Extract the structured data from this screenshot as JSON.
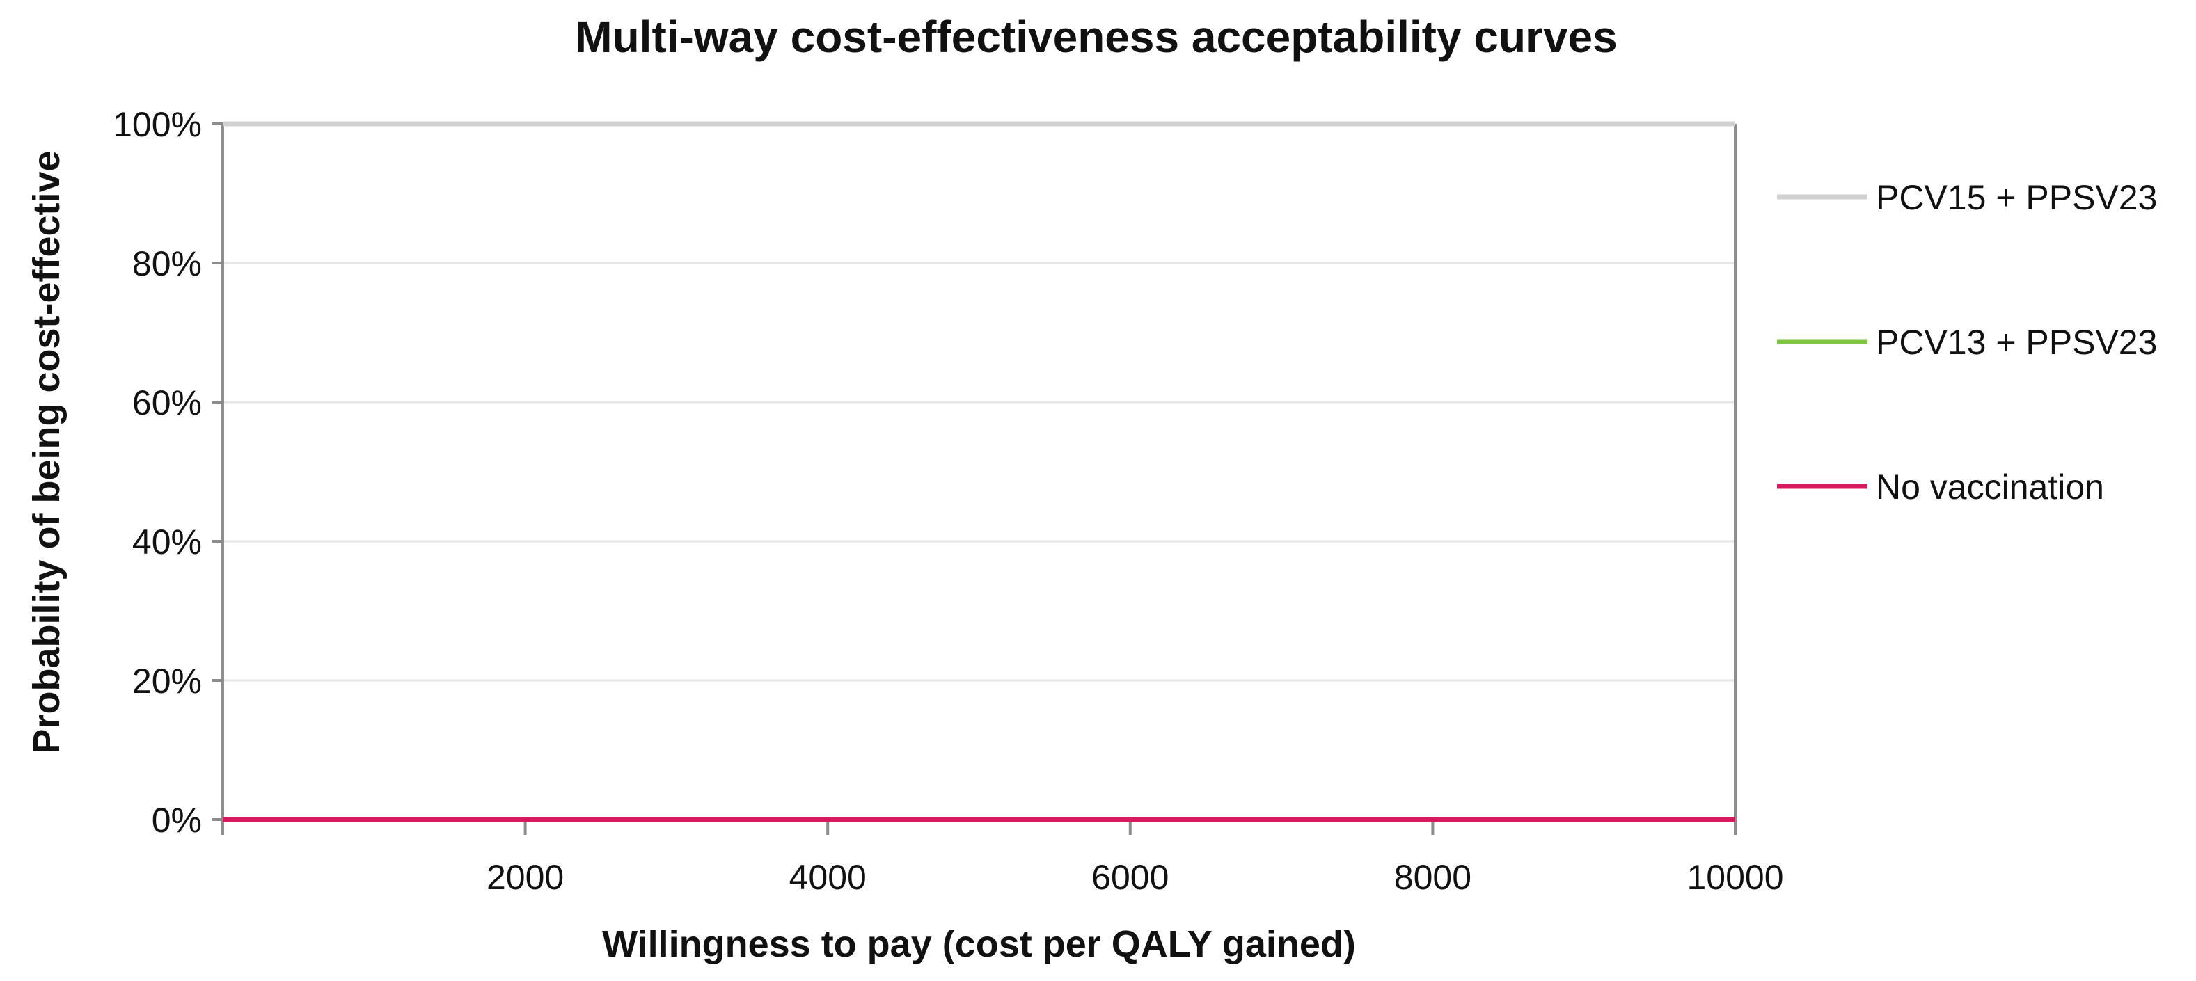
{
  "chart_data": {
    "type": "line",
    "title": "Multi-way cost-effectiveness acceptability curves",
    "xlabel": "Willingness to pay (cost per QALY gained)",
    "ylabel": "Probability of being cost-effective",
    "xlim": [
      0,
      10000
    ],
    "ylim": [
      0,
      100
    ],
    "x_ticks": [
      2000,
      4000,
      6000,
      8000,
      10000
    ],
    "x_tick_labels": [
      "2000",
      "4000",
      "6000",
      "8000",
      "10000"
    ],
    "y_ticks": [
      0,
      20,
      40,
      60,
      80,
      100
    ],
    "y_tick_labels": [
      "0%",
      "20%",
      "40%",
      "60%",
      "80%",
      "100%"
    ],
    "grid": true,
    "legend_position": "right",
    "series": [
      {
        "name": "PCV15 + PPSV23",
        "color": "#d0d0d0",
        "x": [
          0,
          10000
        ],
        "values": [
          100,
          100
        ]
      },
      {
        "name": "PCV13 + PPSV23",
        "color": "#7dc542",
        "x": [
          0,
          10000
        ],
        "values": [
          0,
          0
        ]
      },
      {
        "name": "No vaccination",
        "color": "#d81b60",
        "x": [
          0,
          10000
        ],
        "values": [
          0,
          0
        ]
      }
    ]
  }
}
